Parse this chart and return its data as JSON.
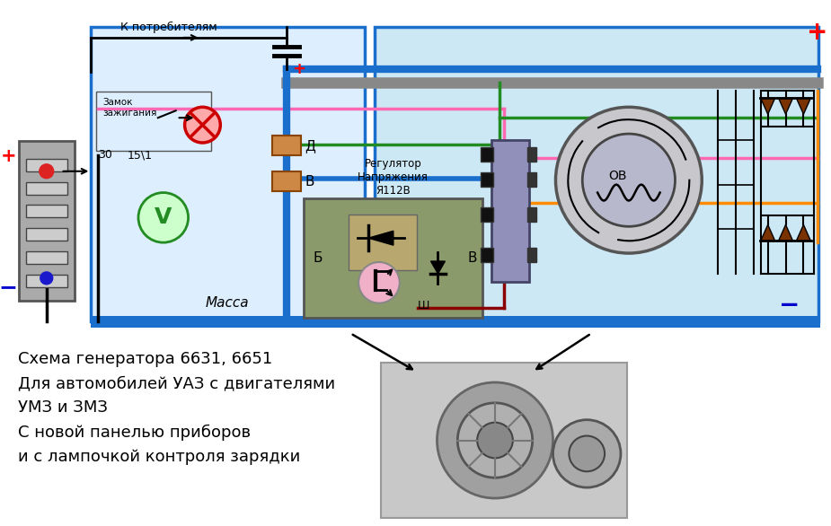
{
  "title": "Схема генератора 6631, 6651\nДля автомобилей УАЗ с двигателями\nУМЗ и ЗМЗ\nС новой панелью приборов\nи с лампочкой контроля зарядки",
  "title_fontsize": 13,
  "bg_color": "#ffffff",
  "light_blue_bg": "#cde8f5",
  "blue_border": "#1a6fcc",
  "consumer_text": "К потребителям",
  "massa_text": "Масса",
  "regulator_text": "Регулятор\nНапряжения\nЯ112В",
  "zamok_text": "Замок\nзажигания",
  "plus_color": "#ff0000",
  "minus_color": "#0000cc",
  "wire_blue": "#1a6fcc",
  "wire_pink": "#ff69b4",
  "wire_green": "#228B22",
  "wire_orange": "#ff8c00",
  "wire_black": "#222222",
  "wire_red": "#8B0000",
  "wire_gray": "#999999"
}
